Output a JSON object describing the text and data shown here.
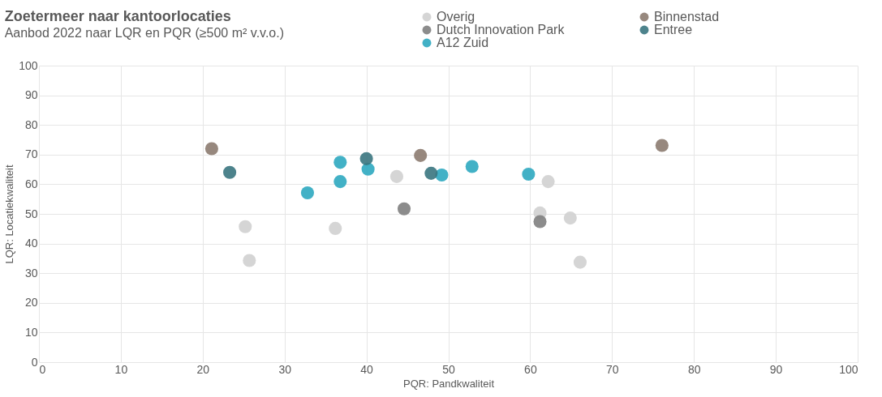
{
  "chart_data": {
    "type": "scatter",
    "title": "Zoetermeer naar kantoorlocaties",
    "subtitle": "Aanbod 2022 naar LQR en PQR (≥500 m² v.v.o.)",
    "xlabel": "PQR: Pandkwaliteit",
    "ylabel": "LQR: Locatiekwaliteit",
    "xlim": [
      0,
      100
    ],
    "ylim": [
      0,
      100
    ],
    "xticks": [
      0,
      10,
      20,
      30,
      40,
      50,
      60,
      70,
      80,
      90,
      100
    ],
    "yticks": [
      0,
      10,
      20,
      30,
      40,
      50,
      60,
      70,
      80,
      90,
      100
    ],
    "grid": true,
    "legend": "top right",
    "marker": "circle",
    "series": [
      {
        "name": "Overig",
        "color": "#d0d0d0",
        "x": [
          43.7,
          25.2,
          36.2,
          25.7,
          62.2,
          61.2,
          64.9,
          66.1
        ],
        "values": [
          62.6,
          45.7,
          45.1,
          34.3,
          60.9,
          50.3,
          48.6,
          33.7
        ]
      },
      {
        "name": "Dutch Innovation Park",
        "color": "#7f7f7f",
        "x": [
          44.6,
          61.2
        ],
        "values": [
          51.7,
          47.4
        ]
      },
      {
        "name": "A12 Zuid",
        "color": "#2ea8c0",
        "x": [
          36.8,
          40.2,
          49.2,
          52.9,
          36.8,
          32.8,
          59.8
        ],
        "values": [
          67.4,
          65.1,
          63.1,
          66.0,
          60.9,
          57.1,
          63.4
        ]
      },
      {
        "name": "Binnenstad",
        "color": "#8c7b70",
        "x": [
          21.1,
          46.6,
          76.1
        ],
        "values": [
          72.0,
          69.7,
          73.1
        ]
      },
      {
        "name": "Entree",
        "color": "#3a7580",
        "x": [
          23.3,
          40.0,
          47.9
        ],
        "values": [
          64.0,
          68.6,
          63.7
        ]
      }
    ]
  }
}
